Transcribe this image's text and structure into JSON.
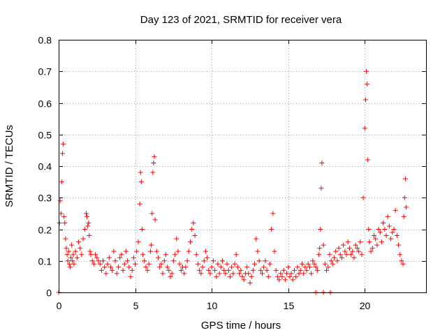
{
  "chart_data": {
    "type": "scatter",
    "title": "Day 123 of 2021, SRMTID for receiver vera",
    "xlabel": "GPS time / hours",
    "ylabel": "SRMTID / TECUs",
    "xlim": [
      0,
      24
    ],
    "ylim": [
      0,
      0.8
    ],
    "xticks": [
      0,
      5,
      10,
      15,
      20
    ],
    "xtick_labels": [
      "0",
      "5",
      "10",
      "15",
      "20"
    ],
    "yticks": [
      0,
      0.1,
      0.2,
      0.3,
      0.4,
      0.5,
      0.6,
      0.7,
      0.8
    ],
    "ytick_labels": [
      "0",
      "0.1",
      "0.2",
      "0.3",
      "0.4",
      "0.5",
      "0.6",
      "0.7",
      "0.8"
    ],
    "grid": true,
    "marker": "+",
    "color": "#ff0000",
    "series": [
      {
        "name": "SRMTID",
        "x": [
          0.0,
          0.05,
          0.1,
          0.15,
          0.2,
          0.25,
          0.3,
          0.35,
          0.4,
          0.45,
          0.5,
          0.55,
          0.6,
          0.65,
          0.7,
          0.75,
          0.8,
          0.85,
          0.9,
          0.95,
          1.0,
          1.1,
          1.2,
          1.3,
          1.4,
          1.5,
          1.6,
          1.7,
          1.8,
          1.85,
          1.9,
          1.95,
          2.0,
          2.05,
          2.1,
          2.2,
          2.3,
          2.4,
          2.5,
          2.6,
          2.7,
          2.8,
          2.9,
          3.0,
          3.1,
          3.2,
          3.3,
          3.4,
          3.5,
          3.6,
          3.7,
          3.8,
          3.9,
          4.0,
          4.1,
          4.2,
          4.3,
          4.4,
          4.5,
          4.6,
          4.7,
          4.8,
          4.9,
          5.0,
          5.1,
          5.2,
          5.3,
          5.35,
          5.4,
          5.45,
          5.5,
          5.6,
          5.7,
          5.8,
          5.9,
          6.0,
          6.05,
          6.1,
          6.15,
          6.2,
          6.25,
          6.3,
          6.4,
          6.5,
          6.6,
          6.7,
          6.8,
          6.9,
          7.0,
          7.1,
          7.2,
          7.3,
          7.4,
          7.5,
          7.6,
          7.7,
          7.8,
          7.9,
          8.0,
          8.1,
          8.2,
          8.3,
          8.4,
          8.5,
          8.6,
          8.7,
          8.8,
          8.9,
          9.0,
          9.1,
          9.2,
          9.3,
          9.4,
          9.5,
          9.6,
          9.7,
          9.8,
          9.9,
          10.0,
          10.1,
          10.2,
          10.3,
          10.4,
          10.5,
          10.6,
          10.7,
          10.8,
          10.9,
          11.0,
          11.1,
          11.2,
          11.3,
          11.4,
          11.5,
          11.6,
          11.7,
          11.8,
          11.9,
          12.0,
          12.1,
          12.2,
          12.3,
          12.4,
          12.5,
          12.6,
          12.7,
          12.8,
          12.9,
          13.0,
          13.1,
          13.2,
          13.3,
          13.4,
          13.5,
          13.6,
          13.7,
          13.8,
          13.9,
          14.0,
          14.1,
          14.2,
          14.3,
          14.4,
          14.5,
          14.6,
          14.7,
          14.8,
          14.9,
          15.0,
          15.1,
          15.2,
          15.3,
          15.4,
          15.5,
          15.6,
          15.7,
          15.8,
          15.9,
          16.0,
          16.1,
          16.2,
          16.3,
          16.4,
          16.5,
          16.6,
          16.7,
          16.8,
          16.9,
          17.0,
          17.05,
          17.1,
          17.15,
          17.2,
          17.3,
          17.4,
          17.5,
          17.6,
          17.7,
          17.8,
          17.9,
          18.0,
          18.1,
          18.2,
          18.3,
          18.4,
          18.5,
          18.6,
          18.7,
          18.8,
          18.9,
          19.0,
          19.1,
          19.2,
          19.3,
          19.4,
          19.5,
          19.6,
          19.7,
          19.8,
          19.9,
          20.0,
          20.05,
          20.1,
          20.15,
          20.2,
          20.25,
          20.3,
          20.4,
          20.5,
          20.6,
          20.7,
          20.8,
          20.9,
          21.0,
          21.1,
          21.2,
          21.3,
          21.4,
          21.5,
          21.6,
          21.7,
          21.8,
          21.9,
          22.0,
          22.1,
          22.2,
          22.3,
          22.4,
          22.5,
          22.55,
          22.6,
          22.65,
          22.7,
          16.8,
          17.3,
          17.75
        ],
        "y": [
          0.0,
          0.22,
          0.29,
          0.25,
          0.35,
          0.44,
          0.47,
          0.24,
          0.22,
          0.17,
          0.14,
          0.12,
          0.1,
          0.13,
          0.09,
          0.08,
          0.11,
          0.15,
          0.1,
          0.12,
          0.09,
          0.13,
          0.11,
          0.16,
          0.14,
          0.12,
          0.17,
          0.2,
          0.25,
          0.24,
          0.21,
          0.22,
          0.18,
          0.13,
          0.12,
          0.1,
          0.09,
          0.12,
          0.11,
          0.1,
          0.09,
          0.07,
          0.1,
          0.08,
          0.06,
          0.09,
          0.11,
          0.08,
          0.07,
          0.13,
          0.1,
          0.06,
          0.08,
          0.11,
          0.12,
          0.07,
          0.09,
          0.13,
          0.1,
          0.08,
          0.05,
          0.07,
          0.11,
          0.09,
          0.13,
          0.16,
          0.28,
          0.38,
          0.35,
          0.2,
          0.12,
          0.1,
          0.08,
          0.07,
          0.09,
          0.13,
          0.15,
          0.25,
          0.38,
          0.41,
          0.43,
          0.23,
          0.13,
          0.11,
          0.08,
          0.09,
          0.06,
          0.1,
          0.12,
          0.08,
          0.07,
          0.05,
          0.06,
          0.1,
          0.12,
          0.17,
          0.13,
          0.09,
          0.07,
          0.08,
          0.06,
          0.08,
          0.1,
          0.13,
          0.16,
          0.2,
          0.22,
          0.18,
          0.12,
          0.09,
          0.07,
          0.06,
          0.08,
          0.1,
          0.13,
          0.11,
          0.07,
          0.06,
          0.08,
          0.1,
          0.07,
          0.05,
          0.09,
          0.06,
          0.08,
          0.1,
          0.07,
          0.06,
          0.09,
          0.07,
          0.05,
          0.08,
          0.06,
          0.09,
          0.12,
          0.08,
          0.06,
          0.07,
          0.05,
          0.04,
          0.06,
          0.08,
          0.06,
          0.03,
          0.05,
          0.07,
          0.09,
          0.17,
          0.13,
          0.1,
          0.07,
          0.06,
          0.08,
          0.1,
          0.07,
          0.05,
          0.09,
          0.2,
          0.25,
          0.13,
          0.07,
          0.05,
          0.04,
          0.06,
          0.05,
          0.07,
          0.04,
          0.06,
          0.08,
          0.05,
          0.06,
          0.04,
          0.07,
          0.05,
          0.08,
          0.06,
          0.07,
          0.09,
          0.06,
          0.08,
          0.07,
          0.09,
          0.08,
          0.06,
          0.1,
          0.09,
          0.08,
          0.07,
          0.12,
          0.14,
          0.2,
          0.33,
          0.41,
          0.15,
          0.09,
          0.07,
          0.08,
          0.12,
          0.1,
          0.09,
          0.11,
          0.13,
          0.1,
          0.14,
          0.12,
          0.11,
          0.15,
          0.13,
          0.12,
          0.16,
          0.14,
          0.12,
          0.13,
          0.11,
          0.15,
          0.14,
          0.13,
          0.16,
          0.12,
          0.3,
          0.52,
          0.61,
          0.7,
          0.66,
          0.42,
          0.2,
          0.16,
          0.13,
          0.14,
          0.18,
          0.17,
          0.15,
          0.2,
          0.19,
          0.16,
          0.22,
          0.2,
          0.18,
          0.24,
          0.21,
          0.17,
          0.19,
          0.2,
          0.26,
          0.18,
          0.15,
          0.12,
          0.1,
          0.09,
          0.24,
          0.3,
          0.36,
          0.27,
          0.0,
          0.0,
          0.0
        ]
      }
    ]
  }
}
